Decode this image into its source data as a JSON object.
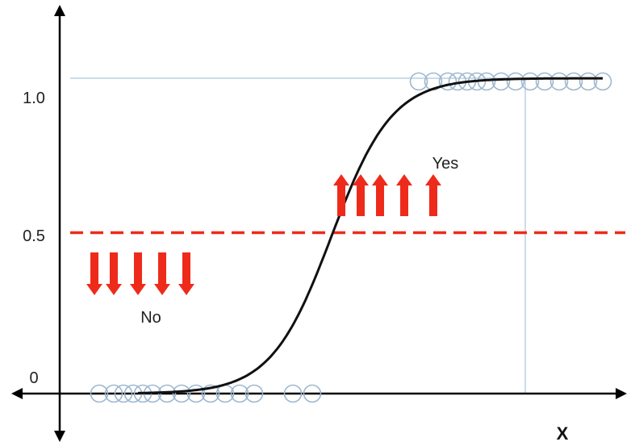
{
  "chart_data": {
    "type": "scatter",
    "title": "",
    "xlabel": "X",
    "ylabel": "",
    "ylim": [
      0,
      1
    ],
    "y_ticks": [
      "0",
      "0.5",
      "1.0"
    ],
    "threshold": 0.5,
    "series": [
      {
        "kind": "scatter",
        "points": [
          {
            "x": 0.6,
            "y": 0
          },
          {
            "x": 0.9,
            "y": 0
          },
          {
            "x": 1.1,
            "y": 0
          },
          {
            "x": 1.3,
            "y": 0
          },
          {
            "x": 1.5,
            "y": 0
          },
          {
            "x": 1.7,
            "y": 0
          },
          {
            "x": 2.0,
            "y": 0
          },
          {
            "x": 2.3,
            "y": 0
          },
          {
            "x": 2.6,
            "y": 0
          },
          {
            "x": 2.9,
            "y": 0
          },
          {
            "x": 3.2,
            "y": 0
          },
          {
            "x": 3.5,
            "y": 0
          },
          {
            "x": 3.8,
            "y": 0
          },
          {
            "x": 4.6,
            "y": 0
          },
          {
            "x": 5.0,
            "y": 0
          },
          {
            "x": 7.2,
            "y": 1
          },
          {
            "x": 7.5,
            "y": 1
          },
          {
            "x": 7.8,
            "y": 1
          },
          {
            "x": 8.0,
            "y": 1
          },
          {
            "x": 8.2,
            "y": 1
          },
          {
            "x": 8.4,
            "y": 1
          },
          {
            "x": 8.6,
            "y": 1
          },
          {
            "x": 8.9,
            "y": 1
          },
          {
            "x": 9.2,
            "y": 1
          },
          {
            "x": 9.5,
            "y": 1
          },
          {
            "x": 9.8,
            "y": 1
          },
          {
            "x": 10.1,
            "y": 1
          },
          {
            "x": 10.4,
            "y": 1
          },
          {
            "x": 10.7,
            "y": 1
          },
          {
            "x": 11.0,
            "y": 1
          }
        ]
      },
      {
        "kind": "logistic-curve",
        "x_range": [
          1.4,
          11.0
        ],
        "midpoint": 5.4,
        "steepness": 1.6
      }
    ],
    "annotations": {
      "yes_label": "Yes",
      "no_label": "No",
      "up_arrows": [
        5.6,
        6.0,
        6.4,
        6.9,
        7.5
      ],
      "down_arrows": [
        0.5,
        0.9,
        1.4,
        1.9,
        2.4
      ]
    },
    "colors": {
      "curve": "#111111",
      "points": "#9db7cf",
      "threshold": "#ee2b1b",
      "arrows": "#ee2b1b",
      "guides": "#a9c6dc",
      "axes": "#000000"
    }
  }
}
